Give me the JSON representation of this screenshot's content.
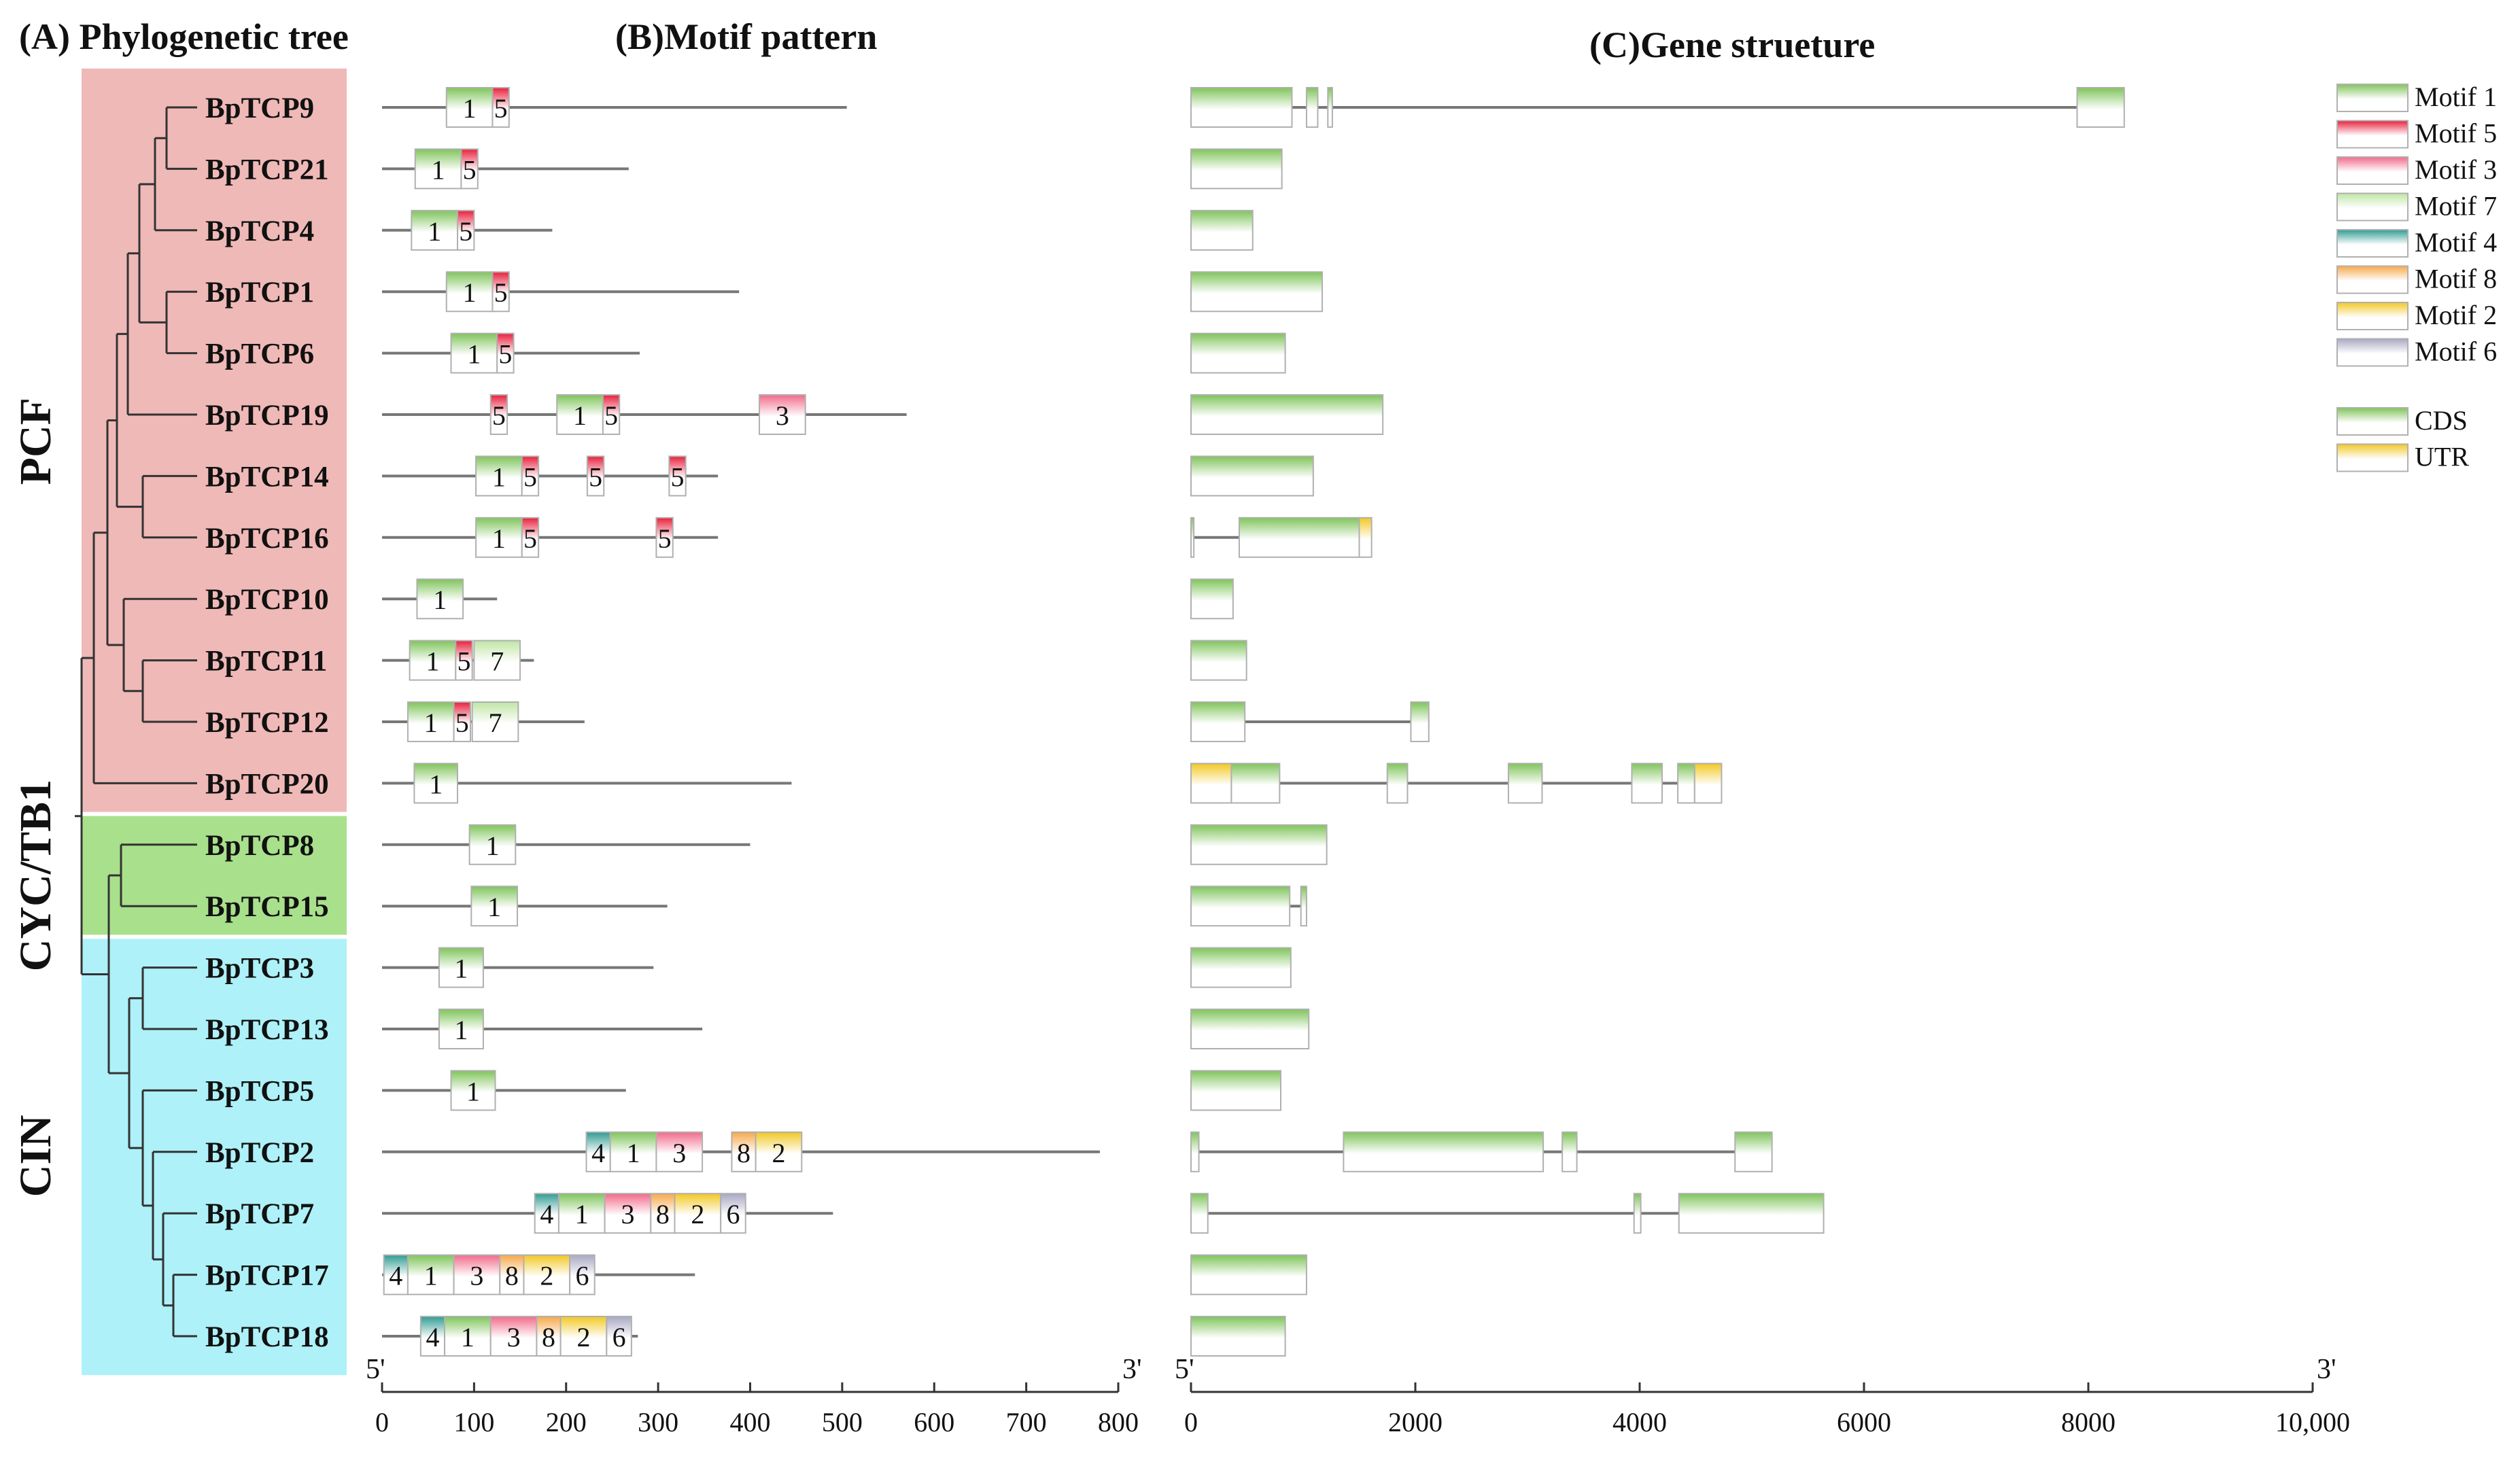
{
  "panels": {
    "a_title": "(A) Phylogenetic tree",
    "b_title": "(B)Motif pattern",
    "c_title": "(C)Gene strueture"
  },
  "groups": [
    {
      "name": "PCF",
      "color": "#efb9b7",
      "first": 0,
      "last": 11
    },
    {
      "name": "CYC/TB1",
      "color": "#a9e08c",
      "first": 12,
      "last": 13
    },
    {
      "name": "CIN",
      "color": "#aef1f8",
      "first": 14,
      "last": 20
    }
  ],
  "motif_colors": {
    "1": "#7fc45a",
    "5": "#e8203c",
    "3": "#f26a8a",
    "7": "#bfe5a4",
    "4": "#2f9c92",
    "8": "#f7a84a",
    "2": "#f2c824",
    "6": "#a8a8c4"
  },
  "legend": {
    "motifs": [
      {
        "id": "1",
        "label": "Motif 1"
      },
      {
        "id": "5",
        "label": "Motif 5"
      },
      {
        "id": "3",
        "label": "Motif 3"
      },
      {
        "id": "7",
        "label": "Motif 7"
      },
      {
        "id": "4",
        "label": "Motif 4"
      },
      {
        "id": "8",
        "label": "Motif 8"
      },
      {
        "id": "2",
        "label": "Motif 2"
      },
      {
        "id": "6",
        "label": "Motif 6"
      }
    ],
    "structure": [
      {
        "id": "cds",
        "label": "CDS",
        "color": "#7fc45a"
      },
      {
        "id": "utr",
        "label": "UTR",
        "color": "#f2c824"
      }
    ]
  },
  "motif_axis": {
    "min": 0,
    "max": 800,
    "ticks": [
      0,
      100,
      200,
      300,
      400,
      500,
      600,
      700,
      800
    ],
    "tick_labels": [
      "0",
      "100",
      "200",
      "300",
      "400",
      "500",
      "600",
      "700",
      "800"
    ],
    "start_label": "5'",
    "end_label": "3'"
  },
  "gene_axis": {
    "min": 0,
    "max": 10000,
    "ticks": [
      0,
      2000,
      4000,
      6000,
      8000,
      10000
    ],
    "tick_labels": [
      "0",
      "2000",
      "4000",
      "6000",
      "8000",
      "10,000"
    ],
    "start_label": "5'",
    "end_label": "3'"
  },
  "genes": [
    {
      "name": "BpTCP9",
      "length": 505,
      "motifs": [
        {
          "id": "1",
          "start": 70,
          "end": 120
        },
        {
          "id": "5",
          "start": 120,
          "end": 138
        }
      ],
      "structure_length": 8320,
      "exons": [
        {
          "type": "cds",
          "start": 0,
          "end": 900
        },
        {
          "type": "cds",
          "start": 1030,
          "end": 1130
        },
        {
          "type": "cds",
          "start": 1220,
          "end": 1260
        },
        {
          "type": "cds",
          "start": 7900,
          "end": 8320
        }
      ]
    },
    {
      "name": "BpTCP21",
      "length": 268,
      "motifs": [
        {
          "id": "1",
          "start": 36,
          "end": 86
        },
        {
          "id": "5",
          "start": 86,
          "end": 104
        }
      ],
      "structure_length": 810,
      "exons": [
        {
          "type": "cds",
          "start": 0,
          "end": 810
        }
      ]
    },
    {
      "name": "BpTCP4",
      "length": 185,
      "motifs": [
        {
          "id": "1",
          "start": 32,
          "end": 82
        },
        {
          "id": "5",
          "start": 82,
          "end": 100
        }
      ],
      "structure_length": 550,
      "exons": [
        {
          "type": "cds",
          "start": 0,
          "end": 550
        }
      ]
    },
    {
      "name": "BpTCP1",
      "length": 388,
      "motifs": [
        {
          "id": "1",
          "start": 70,
          "end": 120
        },
        {
          "id": "5",
          "start": 120,
          "end": 138
        }
      ],
      "structure_length": 1170,
      "exons": [
        {
          "type": "cds",
          "start": 0,
          "end": 1170
        }
      ]
    },
    {
      "name": "BpTCP6",
      "length": 280,
      "motifs": [
        {
          "id": "1",
          "start": 75,
          "end": 125
        },
        {
          "id": "5",
          "start": 125,
          "end": 143
        }
      ],
      "structure_length": 840,
      "exons": [
        {
          "type": "cds",
          "start": 0,
          "end": 840
        }
      ]
    },
    {
      "name": "BpTCP19",
      "length": 570,
      "motifs": [
        {
          "id": "5",
          "start": 118,
          "end": 136
        },
        {
          "id": "1",
          "start": 190,
          "end": 240
        },
        {
          "id": "5",
          "start": 240,
          "end": 258
        },
        {
          "id": "3",
          "start": 410,
          "end": 460
        }
      ],
      "structure_length": 1710,
      "exons": [
        {
          "type": "cds",
          "start": 0,
          "end": 1710
        }
      ]
    },
    {
      "name": "BpTCP14",
      "length": 365,
      "motifs": [
        {
          "id": "1",
          "start": 102,
          "end": 152
        },
        {
          "id": "5",
          "start": 152,
          "end": 170
        },
        {
          "id": "5",
          "start": 223,
          "end": 241
        },
        {
          "id": "5",
          "start": 312,
          "end": 330
        }
      ],
      "structure_length": 1090,
      "exons": [
        {
          "type": "cds",
          "start": 0,
          "end": 1090
        }
      ]
    },
    {
      "name": "BpTCP16",
      "length": 365,
      "motifs": [
        {
          "id": "1",
          "start": 102,
          "end": 152
        },
        {
          "id": "5",
          "start": 152,
          "end": 170
        },
        {
          "id": "5",
          "start": 298,
          "end": 316
        }
      ],
      "structure_length": 1610,
      "exons": [
        {
          "type": "cds",
          "start": 0,
          "end": 25
        },
        {
          "type": "cds",
          "start": 430,
          "end": 1500
        },
        {
          "type": "utr",
          "start": 1500,
          "end": 1610
        }
      ]
    },
    {
      "name": "BpTCP10",
      "length": 125,
      "motifs": [
        {
          "id": "1",
          "start": 38,
          "end": 88
        }
      ],
      "structure_length": 375,
      "exons": [
        {
          "type": "cds",
          "start": 0,
          "end": 375
        }
      ]
    },
    {
      "name": "BpTCP11",
      "length": 165,
      "motifs": [
        {
          "id": "1",
          "start": 30,
          "end": 80
        },
        {
          "id": "5",
          "start": 80,
          "end": 98
        },
        {
          "id": "7",
          "start": 100,
          "end": 150
        }
      ],
      "structure_length": 495,
      "exons": [
        {
          "type": "cds",
          "start": 0,
          "end": 495
        }
      ]
    },
    {
      "name": "BpTCP12",
      "length": 220,
      "motifs": [
        {
          "id": "1",
          "start": 28,
          "end": 78
        },
        {
          "id": "5",
          "start": 78,
          "end": 96
        },
        {
          "id": "7",
          "start": 98,
          "end": 148
        }
      ],
      "structure_length": 2120,
      "exons": [
        {
          "type": "cds",
          "start": 0,
          "end": 480
        },
        {
          "type": "cds",
          "start": 1960,
          "end": 2120
        }
      ]
    },
    {
      "name": "BpTCP20",
      "length": 445,
      "motifs": [
        {
          "id": "1",
          "start": 35,
          "end": 82
        }
      ],
      "structure_length": 4730,
      "exons": [
        {
          "type": "utr",
          "start": 0,
          "end": 360
        },
        {
          "type": "cds",
          "start": 360,
          "end": 790
        },
        {
          "type": "cds",
          "start": 1750,
          "end": 1930
        },
        {
          "type": "cds",
          "start": 2830,
          "end": 3130
        },
        {
          "type": "cds",
          "start": 3930,
          "end": 4200
        },
        {
          "type": "cds",
          "start": 4340,
          "end": 4490
        },
        {
          "type": "utr",
          "start": 4490,
          "end": 4730
        }
      ]
    },
    {
      "name": "BpTCP8",
      "length": 400,
      "motifs": [
        {
          "id": "1",
          "start": 95,
          "end": 145
        }
      ],
      "structure_length": 1210,
      "exons": [
        {
          "type": "cds",
          "start": 0,
          "end": 1210
        }
      ]
    },
    {
      "name": "BpTCP15",
      "length": 310,
      "motifs": [
        {
          "id": "1",
          "start": 97,
          "end": 147
        }
      ],
      "structure_length": 1030,
      "exons": [
        {
          "type": "cds",
          "start": 0,
          "end": 880
        },
        {
          "type": "cds",
          "start": 980,
          "end": 1030
        }
      ]
    },
    {
      "name": "BpTCP3",
      "length": 295,
      "motifs": [
        {
          "id": "1",
          "start": 62,
          "end": 110
        }
      ],
      "structure_length": 890,
      "exons": [
        {
          "type": "cds",
          "start": 0,
          "end": 890
        }
      ]
    },
    {
      "name": "BpTCP13",
      "length": 348,
      "motifs": [
        {
          "id": "1",
          "start": 62,
          "end": 110
        }
      ],
      "structure_length": 1050,
      "exons": [
        {
          "type": "cds",
          "start": 0,
          "end": 1050
        }
      ]
    },
    {
      "name": "BpTCP5",
      "length": 265,
      "motifs": [
        {
          "id": "1",
          "start": 75,
          "end": 123
        }
      ],
      "structure_length": 800,
      "exons": [
        {
          "type": "cds",
          "start": 0,
          "end": 800
        }
      ]
    },
    {
      "name": "BpTCP2",
      "length": 780,
      "motifs": [
        {
          "id": "4",
          "start": 222,
          "end": 248
        },
        {
          "id": "1",
          "start": 248,
          "end": 298
        },
        {
          "id": "3",
          "start": 298,
          "end": 348
        },
        {
          "id": "8",
          "start": 380,
          "end": 406
        },
        {
          "id": "2",
          "start": 406,
          "end": 456
        }
      ],
      "structure_length": 5180,
      "exons": [
        {
          "type": "cds",
          "start": 0,
          "end": 70
        },
        {
          "type": "cds",
          "start": 1360,
          "end": 3140
        },
        {
          "type": "cds",
          "start": 3310,
          "end": 3440
        },
        {
          "type": "cds",
          "start": 4850,
          "end": 5180
        }
      ]
    },
    {
      "name": "BpTCP7",
      "length": 490,
      "motifs": [
        {
          "id": "4",
          "start": 166,
          "end": 192
        },
        {
          "id": "1",
          "start": 192,
          "end": 242
        },
        {
          "id": "3",
          "start": 242,
          "end": 292
        },
        {
          "id": "8",
          "start": 292,
          "end": 318
        },
        {
          "id": "2",
          "start": 318,
          "end": 368
        },
        {
          "id": "6",
          "start": 368,
          "end": 395
        }
      ],
      "structure_length": 5640,
      "exons": [
        {
          "type": "cds",
          "start": 0,
          "end": 150
        },
        {
          "type": "cds",
          "start": 3950,
          "end": 4010
        },
        {
          "type": "cds",
          "start": 4350,
          "end": 5640
        }
      ]
    },
    {
      "name": "BpTCP17",
      "length": 340,
      "motifs": [
        {
          "id": "4",
          "start": 2,
          "end": 28
        },
        {
          "id": "1",
          "start": 28,
          "end": 78
        },
        {
          "id": "3",
          "start": 78,
          "end": 128
        },
        {
          "id": "8",
          "start": 128,
          "end": 154
        },
        {
          "id": "2",
          "start": 154,
          "end": 204
        },
        {
          "id": "6",
          "start": 204,
          "end": 231
        }
      ],
      "structure_length": 1030,
      "exons": [
        {
          "type": "cds",
          "start": 0,
          "end": 1030
        }
      ]
    },
    {
      "name": "BpTCP18",
      "length": 278,
      "motifs": [
        {
          "id": "4",
          "start": 42,
          "end": 68
        },
        {
          "id": "1",
          "start": 68,
          "end": 118
        },
        {
          "id": "3",
          "start": 118,
          "end": 168
        },
        {
          "id": "8",
          "start": 168,
          "end": 194
        },
        {
          "id": "2",
          "start": 194,
          "end": 244
        },
        {
          "id": "6",
          "start": 244,
          "end": 271
        }
      ],
      "structure_length": 840,
      "exons": [
        {
          "type": "cds",
          "start": 0,
          "end": 840
        }
      ]
    }
  ]
}
